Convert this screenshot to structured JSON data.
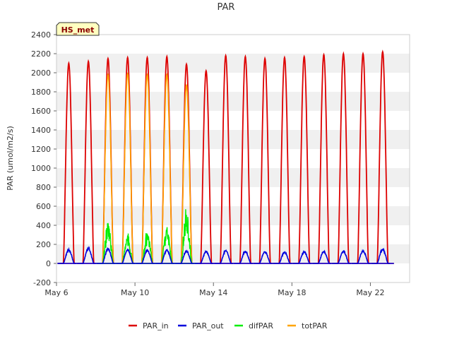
{
  "chart_data": {
    "type": "line",
    "title": "PAR",
    "xlabel": "",
    "ylabel": "PAR (umol/m2/s)",
    "tag": "HS_met",
    "x_unit": "days since May 6",
    "xlim": [
      0,
      18
    ],
    "ylim": [
      -200,
      2400
    ],
    "grid": "horizontal alternating bands",
    "legend_position": "bottom-center",
    "x_ticks": [
      {
        "label": "May 6",
        "value": 0
      },
      {
        "label": "May 10",
        "value": 4
      },
      {
        "label": "May 14",
        "value": 8
      },
      {
        "label": "May 18",
        "value": 12
      },
      {
        "label": "May 22",
        "value": 16
      }
    ],
    "y_ticks": [
      -200,
      0,
      200,
      400,
      600,
      800,
      1000,
      1200,
      1400,
      1600,
      1800,
      2000,
      2200,
      2400
    ],
    "day_peaks": [
      {
        "day": 0,
        "PAR_in": 2100,
        "PAR_out": 150,
        "difPAR": null,
        "totPAR": null
      },
      {
        "day": 1,
        "PAR_in": 2120,
        "PAR_out": 165,
        "difPAR": null,
        "totPAR": null
      },
      {
        "day": 2,
        "PAR_in": 2150,
        "PAR_out": 160,
        "difPAR": 450,
        "totPAR": 1980
      },
      {
        "day": 3,
        "PAR_in": 2160,
        "PAR_out": 150,
        "difPAR": 320,
        "totPAR": 1990
      },
      {
        "day": 4,
        "PAR_in": 2160,
        "PAR_out": 145,
        "difPAR": 350,
        "totPAR": 1980
      },
      {
        "day": 5,
        "PAR_in": 2170,
        "PAR_out": 150,
        "difPAR": 420,
        "totPAR": 1980
      },
      {
        "day": 6,
        "PAR_in": 2090,
        "PAR_out": 140,
        "difPAR": 600,
        "totPAR": 1870
      },
      {
        "day": 7,
        "PAR_in": 2020,
        "PAR_out": 130,
        "difPAR": null,
        "totPAR": null
      },
      {
        "day": 8,
        "PAR_in": 2180,
        "PAR_out": 140,
        "difPAR": null,
        "totPAR": null
      },
      {
        "day": 9,
        "PAR_in": 2170,
        "PAR_out": 135,
        "difPAR": null,
        "totPAR": null
      },
      {
        "day": 10,
        "PAR_in": 2150,
        "PAR_out": 130,
        "difPAR": null,
        "totPAR": null
      },
      {
        "day": 11,
        "PAR_in": 2160,
        "PAR_out": 125,
        "difPAR": null,
        "totPAR": null
      },
      {
        "day": 12,
        "PAR_in": 2170,
        "PAR_out": 130,
        "difPAR": null,
        "totPAR": null
      },
      {
        "day": 13,
        "PAR_in": 2190,
        "PAR_out": 135,
        "difPAR": null,
        "totPAR": null
      },
      {
        "day": 14,
        "PAR_in": 2200,
        "PAR_out": 135,
        "difPAR": null,
        "totPAR": null
      },
      {
        "day": 15,
        "PAR_in": 2200,
        "PAR_out": 140,
        "difPAR": null,
        "totPAR": null
      },
      {
        "day": 16,
        "PAR_in": 2220,
        "PAR_out": 160,
        "difPAR": null,
        "totPAR": null
      }
    ],
    "series": [
      {
        "name": "PAR_in",
        "color": "#dd0000"
      },
      {
        "name": "PAR_out",
        "color": "#0000dd"
      },
      {
        "name": "difPAR",
        "color": "#00ee00"
      },
      {
        "name": "totPAR",
        "color": "#ffa500"
      }
    ]
  }
}
